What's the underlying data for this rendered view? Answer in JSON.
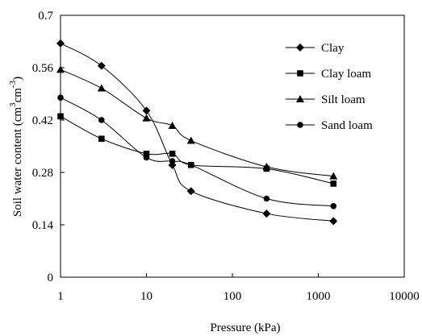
{
  "chart_data": {
    "type": "line",
    "title": "",
    "xlabel": "Pressure (kPa)",
    "ylabel_main": "Soil water content (cm",
    "ylabel_sup1": "3",
    "ylabel_mid": "cm",
    "ylabel_sup2": "-3",
    "ylabel_end": ")",
    "x_scale": "log",
    "xlim": [
      1,
      10000
    ],
    "ylim": [
      0,
      0.7
    ],
    "x_ticks": [
      1,
      10,
      100,
      1000,
      10000
    ],
    "x_tick_labels": [
      "1",
      "10",
      "100",
      "1000",
      "10000"
    ],
    "y_ticks": [
      0,
      0.14,
      0.28,
      0.42,
      0.56,
      0.7
    ],
    "y_tick_labels": [
      "0",
      "0.14",
      "0.28",
      "0.42",
      "0.56",
      "0.7"
    ],
    "grid": false,
    "legend_position": "top-right",
    "series": [
      {
        "name": "Clay",
        "marker": "diamond",
        "x": [
          1,
          3,
          10,
          20,
          33,
          250,
          1500
        ],
        "y": [
          0.625,
          0.565,
          0.445,
          0.3,
          0.23,
          0.17,
          0.15
        ]
      },
      {
        "name": "Clay loam",
        "marker": "square",
        "x": [
          1,
          3,
          10,
          20,
          33,
          250,
          1500
        ],
        "y": [
          0.43,
          0.37,
          0.33,
          0.33,
          0.3,
          0.29,
          0.25
        ]
      },
      {
        "name": "Silt loam",
        "marker": "triangle",
        "x": [
          1,
          3,
          10,
          20,
          33,
          250,
          1500
        ],
        "y": [
          0.555,
          0.505,
          0.425,
          0.405,
          0.365,
          0.295,
          0.27
        ]
      },
      {
        "name": "Sand loam",
        "marker": "circle",
        "x": [
          1,
          3,
          10,
          20,
          33,
          250,
          1500
        ],
        "y": [
          0.48,
          0.42,
          0.32,
          0.31,
          0.3,
          0.21,
          0.19
        ]
      }
    ]
  }
}
